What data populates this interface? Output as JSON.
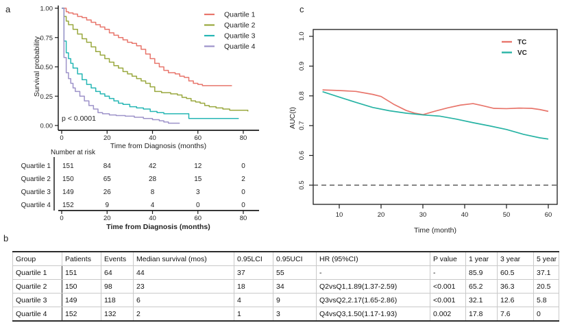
{
  "panels": {
    "a_label": "a",
    "b_label": "b",
    "c_label": "c"
  },
  "colors": {
    "axis": "#1a1a1a",
    "quartile1": "#E8756B",
    "quartile2": "#99A83E",
    "quartile3": "#25B6B4",
    "quartile4": "#9D92C9",
    "tc": "#E8756B",
    "vc": "#27B3A4",
    "reference_dashed": "#3c3c3c"
  },
  "chart_data": [
    {
      "type": "line",
      "subtype": "kaplan-meier-step",
      "xlabel": "Time from Diagnosis (months)",
      "ylabel": "Survival probability",
      "xlim": [
        0,
        80
      ],
      "ylim": [
        0,
        1
      ],
      "xticks": [
        0,
        20,
        40,
        60,
        80
      ],
      "yticks": [
        0.0,
        0.25,
        0.5,
        0.75,
        1.0
      ],
      "ytick_decimals": 2,
      "grid": false,
      "annotation": "p < 0.0001",
      "legend_position": "top-right",
      "series": [
        {
          "name": "Quartile 1",
          "color": "#E8756B",
          "x": [
            0,
            2,
            3,
            5,
            7,
            9,
            11,
            13,
            15,
            17,
            19,
            21,
            23,
            25,
            27,
            29,
            31,
            33,
            35,
            37,
            39,
            41,
            43,
            45,
            47,
            50,
            52,
            54,
            56,
            58,
            60,
            62,
            75
          ],
          "y": [
            1.0,
            0.97,
            0.96,
            0.95,
            0.93,
            0.92,
            0.9,
            0.88,
            0.86,
            0.84,
            0.82,
            0.79,
            0.77,
            0.75,
            0.73,
            0.71,
            0.7,
            0.68,
            0.65,
            0.61,
            0.57,
            0.53,
            0.5,
            0.47,
            0.45,
            0.44,
            0.42,
            0.41,
            0.38,
            0.36,
            0.35,
            0.34,
            0.34
          ]
        },
        {
          "name": "Quartile 2",
          "color": "#99A83E",
          "x": [
            0,
            1,
            2,
            3,
            5,
            7,
            9,
            11,
            13,
            15,
            17,
            19,
            21,
            23,
            25,
            27,
            29,
            31,
            33,
            35,
            37,
            39,
            41,
            44,
            48,
            51,
            53,
            55,
            57,
            59,
            61,
            63,
            65,
            68,
            71,
            74,
            82
          ],
          "y": [
            1.0,
            0.93,
            0.89,
            0.86,
            0.82,
            0.78,
            0.74,
            0.71,
            0.67,
            0.63,
            0.6,
            0.57,
            0.54,
            0.51,
            0.49,
            0.46,
            0.44,
            0.42,
            0.4,
            0.38,
            0.36,
            0.33,
            0.29,
            0.28,
            0.27,
            0.26,
            0.24,
            0.23,
            0.21,
            0.2,
            0.19,
            0.17,
            0.16,
            0.15,
            0.14,
            0.13,
            0.12
          ]
        },
        {
          "name": "Quartile 3",
          "color": "#25B6B4",
          "x": [
            0,
            1,
            2,
            3,
            4,
            5,
            7,
            9,
            11,
            13,
            15,
            17,
            19,
            21,
            23,
            25,
            27,
            30,
            33,
            36,
            39,
            42,
            45,
            48,
            56,
            78
          ],
          "y": [
            1.0,
            0.72,
            0.62,
            0.57,
            0.53,
            0.49,
            0.44,
            0.39,
            0.35,
            0.32,
            0.29,
            0.27,
            0.25,
            0.23,
            0.21,
            0.19,
            0.18,
            0.16,
            0.15,
            0.14,
            0.12,
            0.11,
            0.1,
            0.1,
            0.06,
            0.06
          ]
        },
        {
          "name": "Quartile 4",
          "color": "#9D92C9",
          "x": [
            0,
            1,
            2,
            3,
            4,
            5,
            6,
            8,
            10,
            12,
            14,
            16,
            18,
            21,
            24,
            28,
            32,
            36,
            40,
            43,
            45,
            47,
            52
          ],
          "y": [
            1.0,
            0.58,
            0.45,
            0.4,
            0.36,
            0.32,
            0.29,
            0.25,
            0.21,
            0.17,
            0.14,
            0.11,
            0.1,
            0.09,
            0.085,
            0.08,
            0.07,
            0.06,
            0.05,
            0.04,
            0.03,
            0.02,
            0.02
          ]
        }
      ],
      "risk_table": {
        "title": "Number at risk",
        "xticks": [
          0,
          20,
          40,
          60,
          80
        ],
        "xlabel": "Time from Diagnosis (months)",
        "rows": [
          {
            "label": "Quartile 1",
            "counts": [
              151,
              84,
              42,
              12,
              0
            ]
          },
          {
            "label": "Quartile 2",
            "counts": [
              150,
              65,
              28,
              15,
              2
            ]
          },
          {
            "label": "Quartile 3",
            "counts": [
              149,
              26,
              8,
              3,
              0
            ]
          },
          {
            "label": "Quartile 4",
            "counts": [
              152,
              9,
              4,
              0,
              0
            ]
          }
        ]
      }
    },
    {
      "type": "line",
      "xlabel": "Time (month)",
      "ylabel": "AUC(t)",
      "xlim": [
        4,
        62
      ],
      "ylim": [
        0.435,
        1.025
      ],
      "xticks": [
        10,
        20,
        30,
        40,
        50,
        60
      ],
      "yticks": [
        0.5,
        0.6,
        0.7,
        0.8,
        0.9,
        1.0
      ],
      "ytick_decimals": 1,
      "grid": false,
      "reference_line_y": 0.5,
      "legend_position": "top-right",
      "series": [
        {
          "name": "TC",
          "color": "#E8756B",
          "x": [
            6,
            10,
            14,
            18,
            20,
            23,
            26,
            28,
            30,
            33,
            36,
            39,
            42,
            44,
            47,
            50,
            53,
            56,
            58,
            60
          ],
          "y": [
            0.82,
            0.818,
            0.815,
            0.805,
            0.798,
            0.772,
            0.751,
            0.742,
            0.737,
            0.749,
            0.76,
            0.769,
            0.774,
            0.768,
            0.758,
            0.757,
            0.759,
            0.758,
            0.754,
            0.748
          ]
        },
        {
          "name": "VC",
          "color": "#27B3A4",
          "x": [
            6,
            10,
            14,
            18,
            22,
            26,
            30,
            34,
            38,
            42,
            46,
            50,
            54,
            58,
            60
          ],
          "y": [
            0.814,
            0.796,
            0.778,
            0.761,
            0.75,
            0.742,
            0.736,
            0.732,
            0.722,
            0.71,
            0.699,
            0.687,
            0.671,
            0.659,
            0.655
          ]
        }
      ]
    }
  ],
  "table_b": {
    "headers": [
      "Group",
      "Patients",
      "Events",
      "Median survival (mos)",
      "0.95LCI",
      "0.95UCI",
      "HR (95%CI)",
      "P value",
      "1 year",
      "3 year",
      "5 year"
    ],
    "rows": [
      {
        "cells": [
          "Quartile 1",
          "151",
          "64",
          "44",
          "37",
          "55",
          "-",
          "-",
          "85.9",
          "60.5",
          "37.1"
        ]
      },
      {
        "cells": [
          "Quartile 2",
          "150",
          "98",
          "23",
          "18",
          "34",
          "Q2vsQ1,1.89(1.37-2.59)",
          "<0.001",
          "65.2",
          "36.3",
          "20.5"
        ]
      },
      {
        "cells": [
          "Quartile 3",
          "149",
          "118",
          "6",
          "4",
          "9",
          "Q3vsQ2,2.17(1.65-2.86)",
          "<0.001",
          "32.1",
          "12.6",
          "5.8"
        ]
      },
      {
        "cells": [
          "Quartile 4",
          "152",
          "132",
          "2",
          "1",
          "3",
          "Q4vsQ3,1.50(1.17-1.93)",
          "0.002",
          "17.8",
          "7.6",
          "0"
        ]
      }
    ]
  }
}
